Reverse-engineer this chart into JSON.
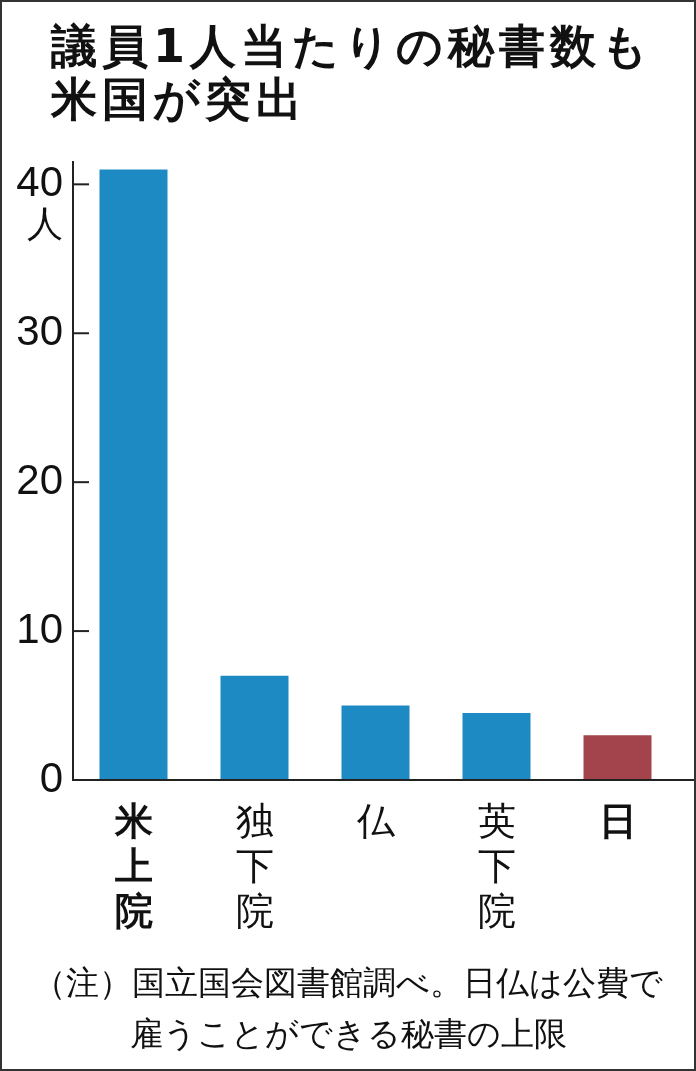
{
  "chart_data": {
    "type": "bar",
    "title": "議員1人当たりの秘書数も米国が突出",
    "ylabel": "人",
    "categories": [
      "米上院",
      "独下院",
      "仏",
      "英下院",
      "日"
    ],
    "values": [
      41,
      7,
      5,
      4.5,
      3
    ],
    "colors": [
      "#1e8ac4",
      "#1e8ac4",
      "#1e8ac4",
      "#1e8ac4",
      "#a3434b"
    ],
    "ylim": [
      0,
      41.5
    ],
    "yticks": [
      0,
      10,
      20,
      30,
      40
    ],
    "grid": false,
    "annotations": [
      "（注）国立国会図書館調べ。日仏は公費で雇うことができる秘書の上限"
    ]
  }
}
